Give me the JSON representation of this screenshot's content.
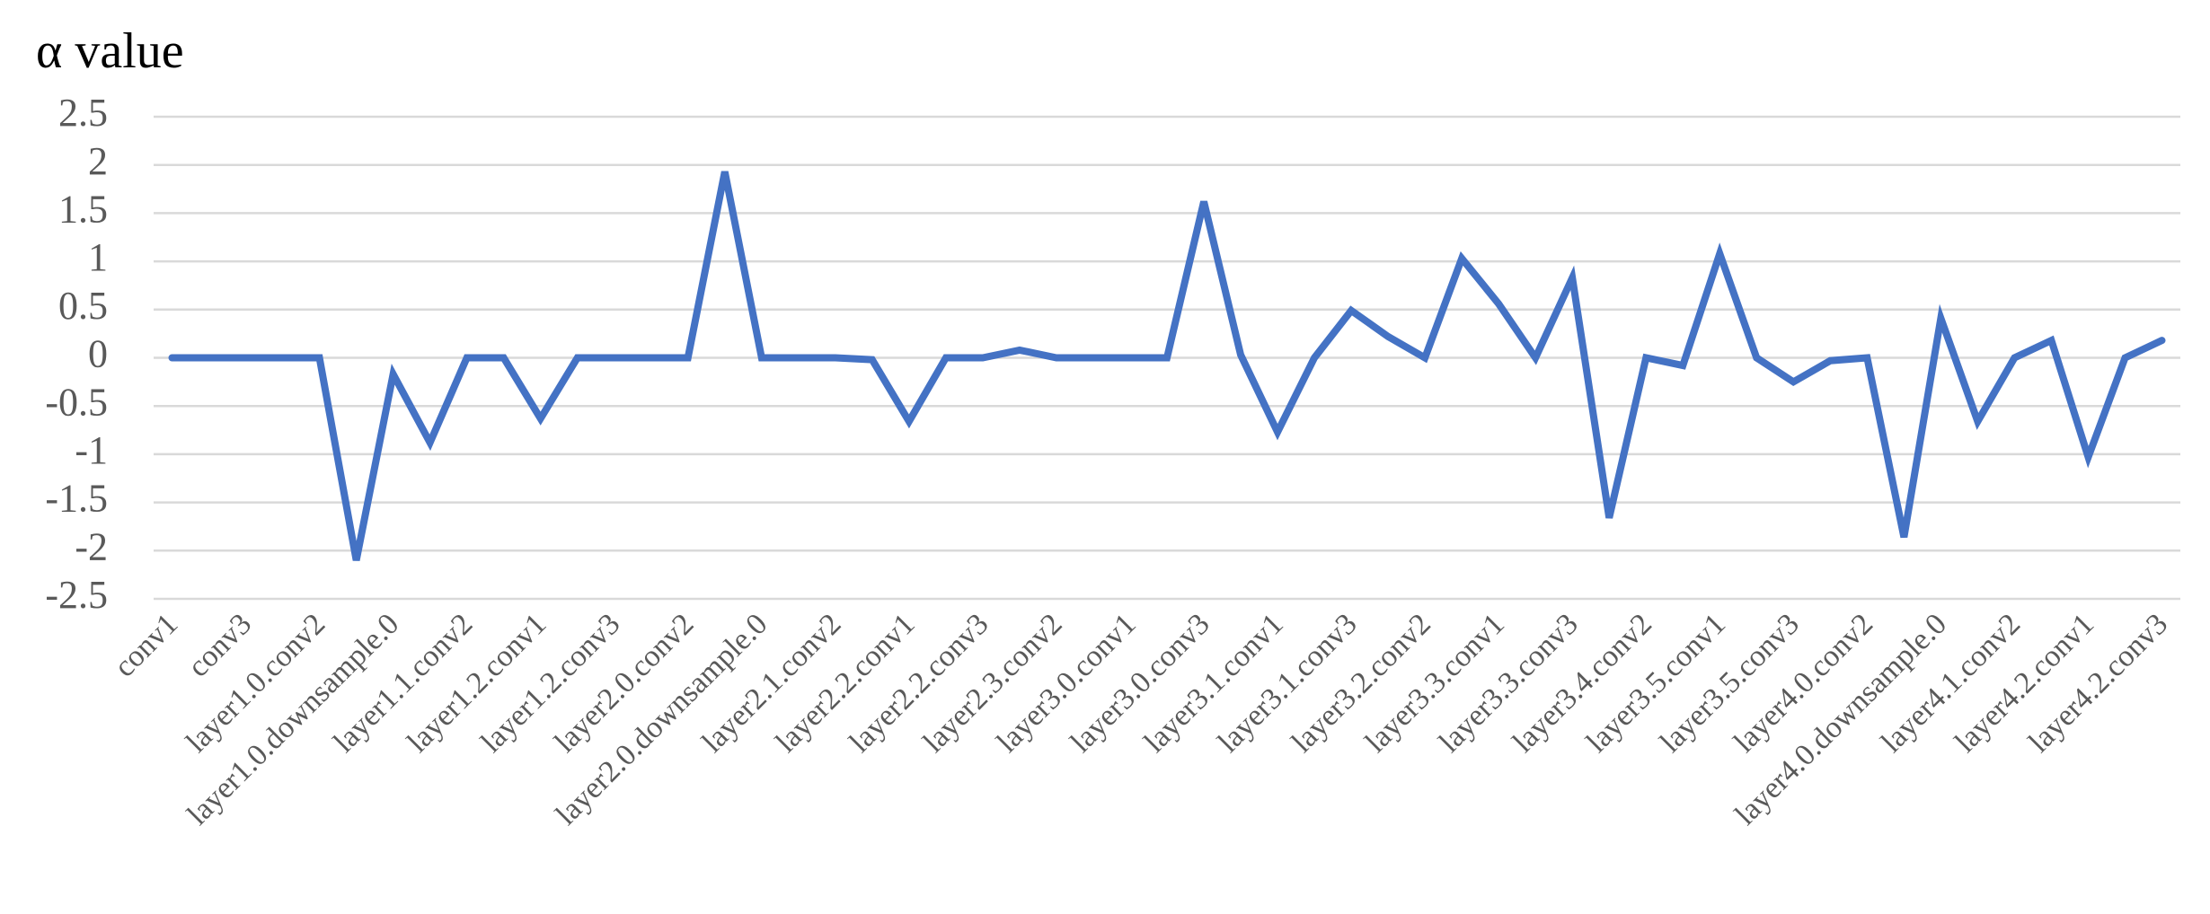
{
  "chart_data": {
    "type": "line",
    "title": "α value",
    "categories": [
      "conv1",
      null,
      "conv3",
      null,
      "layer1.0.conv2",
      null,
      "layer1.0.downsample.0",
      null,
      "layer1.1.conv2",
      null,
      "layer1.2.conv1",
      null,
      "layer1.2.conv3",
      null,
      "layer2.0.conv2",
      null,
      "layer2.0.downsample.0",
      null,
      "layer2.1.conv2",
      null,
      "layer2.2.conv1",
      null,
      "layer2.2.conv3",
      null,
      "layer2.3.conv2",
      null,
      "layer3.0.conv1",
      null,
      "layer3.0.conv3",
      null,
      "layer3.1.conv1",
      null,
      "layer3.1.conv3",
      null,
      "layer3.2.conv2",
      null,
      "layer3.3.conv1",
      null,
      "layer3.3.conv3",
      null,
      "layer3.4.conv2",
      null,
      "layer3.5.conv1",
      null,
      "layer3.5.conv3",
      null,
      "layer4.0.conv2",
      null,
      "layer4.0.downsample.0",
      null,
      "layer4.1.conv2",
      null,
      "layer4.2.conv1",
      null,
      "layer4.2.conv3"
    ],
    "series": [
      {
        "color": "#4472c4",
        "values": [
          0,
          0,
          0,
          0,
          0,
          -2.1,
          -0.17,
          -0.88,
          0,
          0,
          -0.63,
          0,
          0,
          0,
          0,
          1.93,
          0,
          0,
          0,
          -0.02,
          -0.66,
          0,
          0,
          0.08,
          0,
          0,
          0,
          0,
          1.62,
          0.03,
          -0.77,
          0,
          0.49,
          0.22,
          0,
          1.03,
          0.56,
          0,
          0.83,
          -1.66,
          0,
          -0.08,
          1.08,
          0,
          -0.25,
          -0.03,
          0,
          -1.86,
          0.41,
          -0.66,
          0,
          0.18,
          -1.03,
          0,
          0.18
        ]
      }
    ],
    "ylim": [
      -2.5,
      2.5
    ],
    "yticks": [
      -2.5,
      -2,
      -1.5,
      -1,
      -0.5,
      0,
      0.5,
      1,
      1.5,
      2,
      2.5
    ],
    "grid": true
  }
}
